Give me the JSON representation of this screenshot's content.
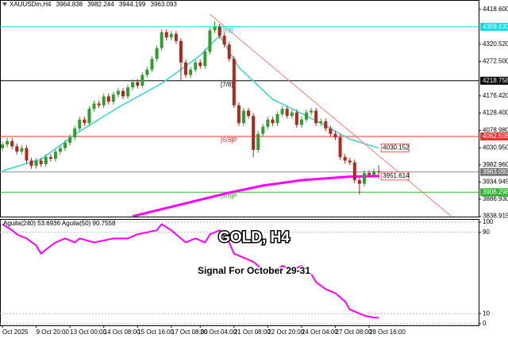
{
  "chart_data": [
    {
      "type": "candlestick",
      "title": "XAUUSDm,H4",
      "categories": [
        "Oct 2025",
        null,
        null,
        null,
        null,
        null,
        null,
        "9 Oct 20:00",
        null,
        null,
        null,
        null,
        null,
        null,
        "13 Oct 00:00",
        null,
        null,
        null,
        null,
        null,
        null,
        "14 Oct 08:00",
        null,
        null,
        null,
        null,
        null,
        null,
        "15 Oct 16:00",
        null,
        null,
        null,
        null,
        null,
        null,
        "17 Oct 08:00",
        null,
        null,
        null,
        null,
        null,
        "20 Oct 04:00",
        null,
        null,
        null,
        null,
        null,
        null,
        "21 Oct 08:00",
        null,
        null,
        null,
        null,
        null,
        null,
        "22 Oct 20:00",
        null,
        null,
        null,
        null,
        null,
        null,
        "24 Oct 04:00",
        null,
        null,
        null,
        null,
        null,
        null,
        "27 Oct 08:00",
        null,
        null,
        null,
        null,
        null,
        null,
        "28 Oct 16:00",
        null,
        null
      ],
      "open": [
        4030,
        4040,
        4050,
        4035,
        4020,
        4030,
        3995,
        3980,
        3995,
        3985,
        4005,
        4000,
        4020,
        4030,
        4045,
        4060,
        4085,
        4110,
        4100,
        4140,
        4155,
        4150,
        4175,
        4160,
        4180,
        4190,
        4175,
        4200,
        4215,
        4205,
        4235,
        4250,
        4280,
        4310,
        4355,
        4340,
        4350,
        4330,
        4270,
        4235,
        4250,
        4270,
        4260,
        4300,
        4360,
        4370,
        4345,
        4320,
        4280,
        4150,
        4100,
        4135,
        4120,
        4025,
        4070,
        4090,
        4110,
        4100,
        4125,
        4140,
        4120,
        4130,
        4095,
        4110,
        4130,
        4135,
        4100,
        4105,
        4085,
        4070,
        4060,
        4005,
        3995,
        3990,
        3940,
        3930,
        3960,
        3955,
        3964.838
      ],
      "high": [
        4048,
        4058,
        4058,
        4043,
        4038,
        4038,
        4003,
        4003,
        4003,
        4013,
        4013,
        4028,
        4038,
        4053,
        4068,
        4093,
        4118,
        4118,
        4148,
        4163,
        4163,
        4183,
        4183,
        4188,
        4198,
        4198,
        4208,
        4223,
        4223,
        4243,
        4258,
        4288,
        4318,
        4363,
        4363,
        4358,
        4358,
        4338,
        4278,
        4258,
        4278,
        4278,
        4308,
        4368,
        4385,
        4378,
        4353,
        4328,
        4288,
        4158,
        4143,
        4143,
        4128,
        4078,
        4098,
        4118,
        4118,
        4133,
        4148,
        4148,
        4138,
        4138,
        4118,
        4138,
        4143,
        4143,
        4113,
        4113,
        4093,
        4078,
        4068,
        4013,
        4003,
        3998,
        3948,
        3968,
        3968,
        3973,
        3982.244
      ],
      "low": [
        4022,
        4032,
        4027,
        4012,
        4012,
        3987,
        3972,
        3972,
        3977,
        3977,
        3992,
        3992,
        4012,
        4022,
        4037,
        4052,
        4077,
        4092,
        4092,
        4132,
        4142,
        4142,
        4152,
        4152,
        4172,
        4167,
        4167,
        4192,
        4197,
        4197,
        4227,
        4242,
        4272,
        4302,
        4332,
        4332,
        4322,
        4220,
        4227,
        4227,
        4242,
        4252,
        4252,
        4292,
        4352,
        4337,
        4312,
        4272,
        4142,
        4092,
        4092,
        4112,
        4005,
        4017,
        4062,
        4082,
        4092,
        4092,
        4117,
        4112,
        4112,
        4087,
        4087,
        4102,
        4122,
        4092,
        4092,
        4077,
        4062,
        4052,
        3997,
        3987,
        3982,
        3932,
        3900,
        3922,
        3947,
        3947,
        3944.199
      ],
      "close": [
        4040,
        4050,
        4035,
        4020,
        4030,
        3995,
        3980,
        3995,
        3985,
        4005,
        4000,
        4020,
        4030,
        4045,
        4060,
        4085,
        4110,
        4100,
        4140,
        4155,
        4150,
        4175,
        4160,
        4180,
        4190,
        4175,
        4200,
        4215,
        4205,
        4235,
        4250,
        4280,
        4310,
        4355,
        4340,
        4350,
        4330,
        4270,
        4235,
        4250,
        4270,
        4260,
        4300,
        4360,
        4370,
        4345,
        4320,
        4280,
        4150,
        4100,
        4135,
        4120,
        4025,
        4070,
        4090,
        4110,
        4100,
        4125,
        4140,
        4120,
        4130,
        4095,
        4110,
        4130,
        4135,
        4100,
        4105,
        4085,
        4070,
        4060,
        4005,
        3995,
        3990,
        3940,
        3930,
        3960,
        3955,
        3965,
        3963.093
      ],
      "up_color": "#2e9e2e",
      "down_color": "#b3261e",
      "current_color": "#8c8c8c",
      "overlays": [
        {
          "color": "#3dd6d0",
          "x": [
            0,
            8,
            16,
            24,
            33,
            41,
            45,
            49,
            56,
            66,
            72,
            78
          ],
          "values": [
            3966,
            3999,
            4077,
            4144,
            4211,
            4290,
            4345,
            4256,
            4167,
            4100,
            4055,
            4030.152
          ]
        },
        {
          "color": "#ff00ff",
          "x": [
            27,
            47,
            54,
            62,
            72,
            78
          ],
          "values": [
            3839,
            3905,
            3925,
            3940,
            3950,
            3951.614
          ]
        },
        {
          "color": "#f08070",
          "x": [
            43,
            93
          ],
          "values": [
            4405,
            3839
          ]
        }
      ],
      "levels": [
        {
          "name": "[8/8]",
          "value": 4369.83,
          "value_label": "4369.830",
          "color": "#00dde6"
        },
        {
          "name": "[7/8]",
          "value": 4218.758,
          "color": "#000000"
        },
        {
          "name": "[6/8]P",
          "value": 4062.508,
          "color": "#e8332a"
        },
        {
          "name": "[5/8]P",
          "value": 3906.298,
          "color": "#2fb82f"
        }
      ],
      "xlim": [
        -0.5,
        98.7
      ],
      "ylim": [
        3838,
        4445
      ],
      "yticks": [
        {
          "value": 4418.6,
          "label": "4418.600"
        },
        {
          "value": 4320.52,
          "label": "4320.520"
        },
        {
          "value": 4272.5,
          "label": "4272.500"
        },
        {
          "value": 4176.42,
          "label": "4176.420"
        },
        {
          "value": 4128.4,
          "label": "4128.400"
        },
        {
          "value": 4078.98,
          "label": "4078.980"
        },
        {
          "value": 4030.95,
          "label": "4030.950"
        },
        {
          "value": 3982.96,
          "label": "3982.960"
        },
        {
          "value": 3934.945,
          "label": "3934.945"
        },
        {
          "value": 3886.93,
          "label": "3886.930"
        },
        {
          "value": 3838.915,
          "label": "3838.915"
        }
      ]
    },
    {
      "type": "line",
      "title": "Aguila(240) 53.6936 Aguila(50) 90.7558",
      "x": [
        0,
        2,
        3,
        5,
        7,
        8,
        9,
        11,
        13,
        15,
        16,
        19,
        23,
        26,
        28,
        32,
        33,
        35,
        37,
        38,
        40,
        42,
        43,
        45,
        47,
        48,
        50,
        52,
        54,
        56,
        58,
        60,
        62,
        64,
        65,
        67,
        69,
        71,
        72,
        74,
        75,
        77,
        78
      ],
      "series": [
        {
          "color": "#ff00ff",
          "values": [
            98,
            92,
            88,
            84,
            77,
            69,
            73,
            80,
            84,
            80,
            84,
            80,
            84,
            84,
            88,
            92,
            98,
            92,
            84,
            80,
            84,
            80,
            88,
            92,
            80,
            69,
            65,
            61,
            53,
            49,
            57,
            53,
            57,
            49,
            41,
            34,
            30,
            22,
            14,
            10,
            8,
            6,
            6
          ]
        }
      ],
      "xlim": [
        -0.5,
        98.7
      ],
      "ylim": [
        0,
        100
      ],
      "yticks": [
        0,
        10,
        90,
        100
      ]
    }
  ],
  "overlay": {
    "title": "GOLD, H4",
    "subtitle": "Signal For October 29-31"
  }
}
